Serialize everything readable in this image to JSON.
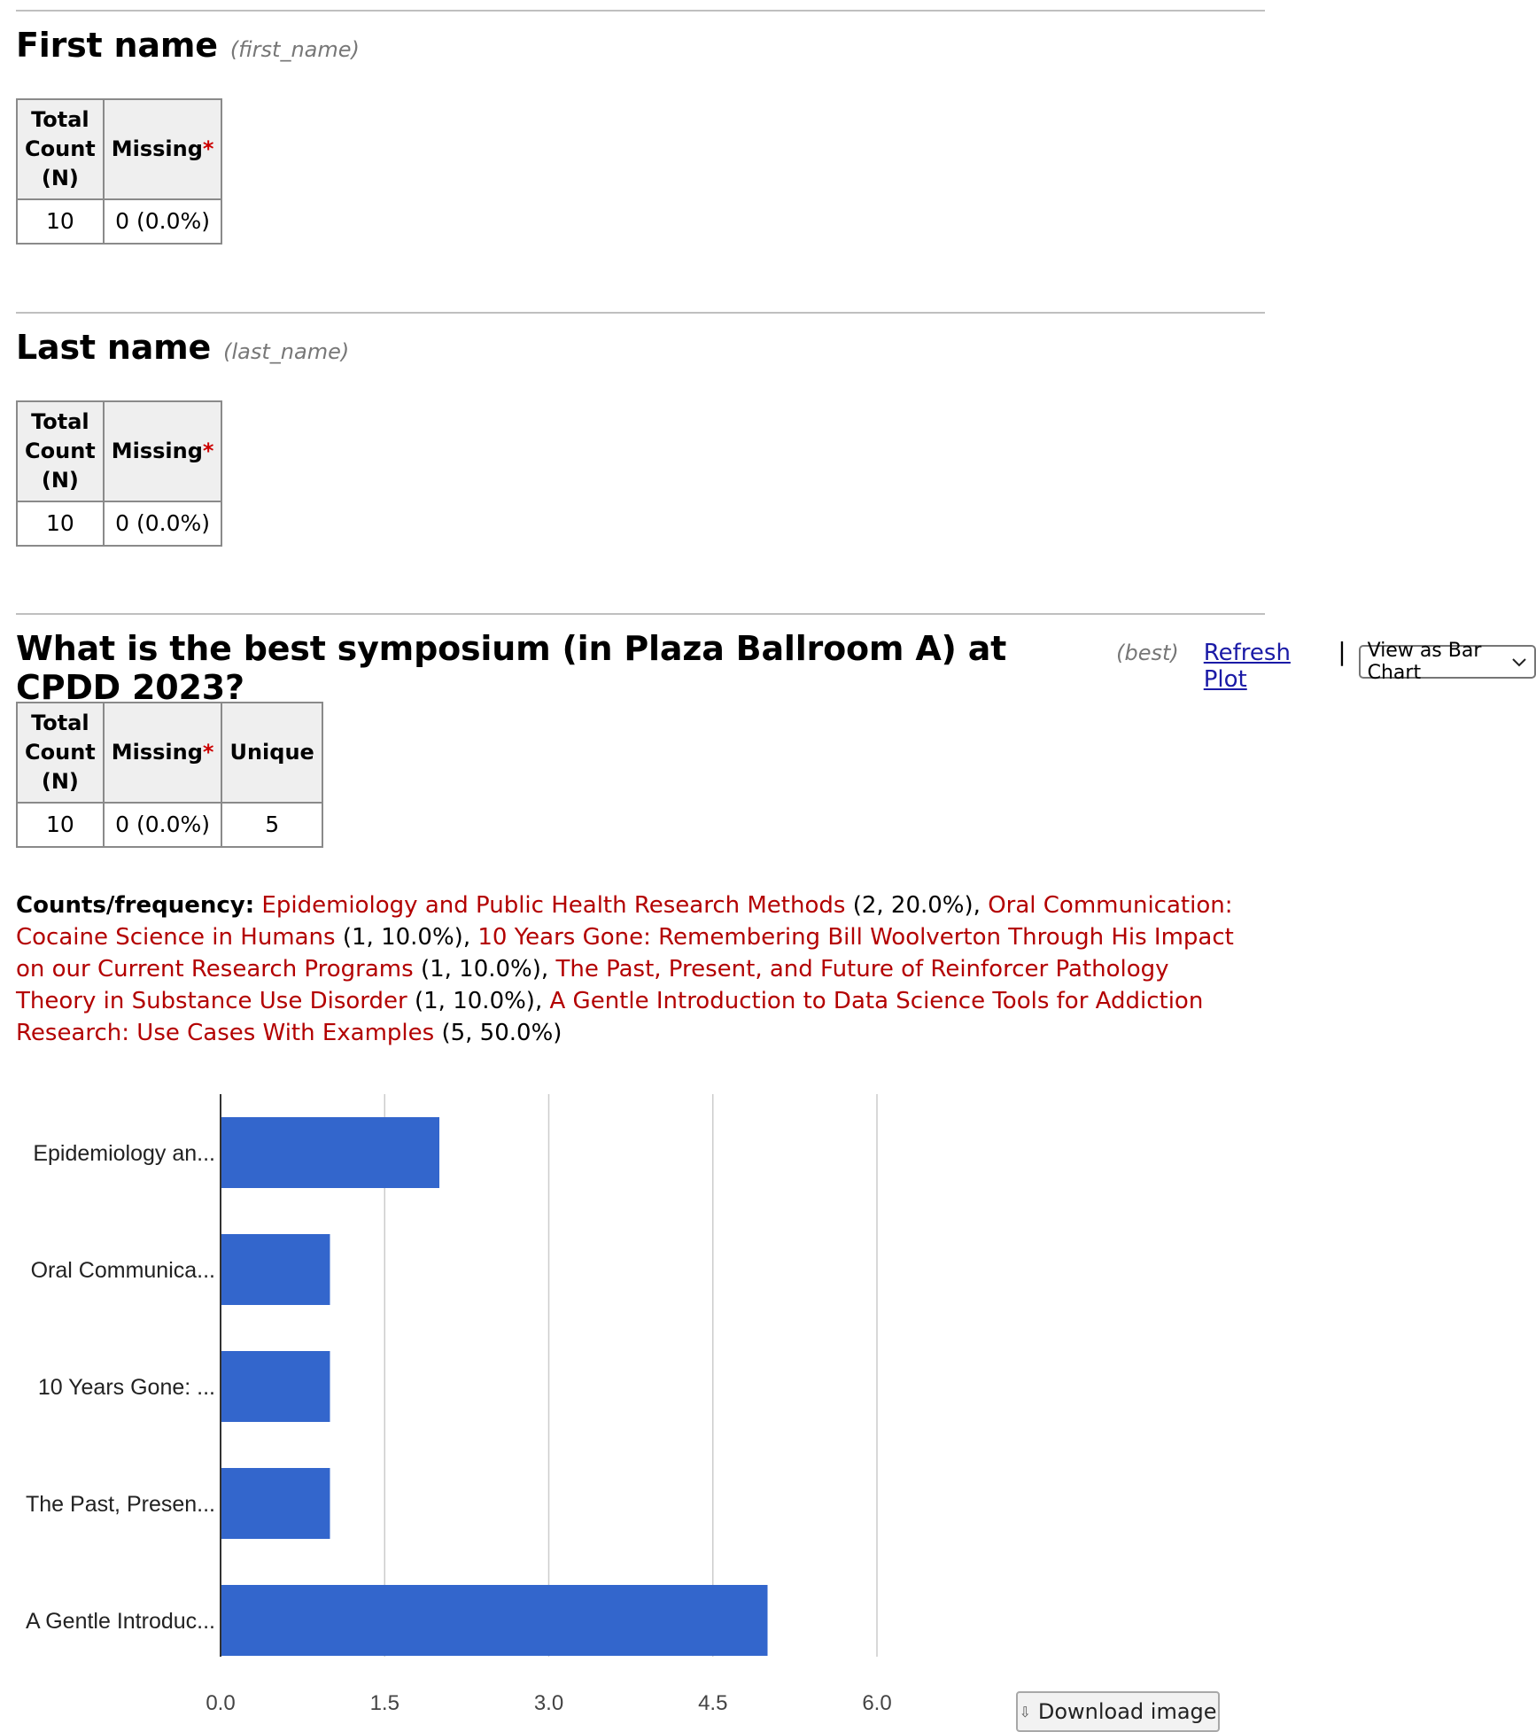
{
  "fields": [
    {
      "title": "First name",
      "varname": "(first_name)",
      "headers": [
        "Total Count (N)",
        "Missing"
      ],
      "values": [
        "10",
        "0 (0.0%)"
      ]
    },
    {
      "title": "Last name",
      "varname": "(last_name)",
      "headers": [
        "Total Count (N)",
        "Missing"
      ],
      "values": [
        "10",
        "0 (0.0%)"
      ]
    },
    {
      "title": "What is the best symposium (in Plaza Ballroom A) at CPDD 2023?",
      "varname": "(best)",
      "refresh_label": "Refresh Plot",
      "separator": "|",
      "view_select": "View as Bar Chart",
      "headers": [
        "Total Count (N)",
        "Missing",
        "Unique"
      ],
      "values": [
        "10",
        "0 (0.0%)",
        "5"
      ]
    }
  ],
  "header_parts": {
    "total_line1": "Total",
    "total_line2": "Count",
    "total_line3": "(N)",
    "missing": "Missing",
    "asterisk": "*",
    "unique": "Unique"
  },
  "counts": {
    "label": "Counts/frequency:",
    "items": [
      {
        "name": "Epidemiology and Public Health Research Methods",
        "stat": "(2, 20.0%)"
      },
      {
        "name": "Oral Communication: Cocaine Science in Humans",
        "stat": "(1, 10.0%)"
      },
      {
        "name": "10 Years Gone: Remembering Bill Woolverton Through His Impact on our Current Research Programs",
        "stat": "(1, 10.0%)"
      },
      {
        "name": "The Past, Present, and Future of Reinforcer Pathology Theory in Substance Use Disorder",
        "stat": "(1, 10.0%)"
      },
      {
        "name": "A Gentle Introduction to Data Science Tools for Addiction Research: Use Cases With Examples",
        "stat": "(5, 50.0%)"
      }
    ]
  },
  "chart_data": {
    "type": "bar",
    "orientation": "horizontal",
    "categories": [
      "Epidemiology an...",
      "Oral Communica...",
      "10 Years Gone: ...",
      "The Past, Presen...",
      "A Gentle Introduc..."
    ],
    "values": [
      2,
      1,
      1,
      1,
      5
    ],
    "xlim": [
      0,
      6
    ],
    "xticks": [
      "0.0",
      "1.5",
      "3.0",
      "4.5",
      "6.0"
    ],
    "bar_color": "#3366cc",
    "grid": true
  },
  "download_label": "Download image",
  "colors": {
    "link_red": "#b30000",
    "link_blue": "#1a1aa6",
    "asterisk": "#cc0000"
  }
}
